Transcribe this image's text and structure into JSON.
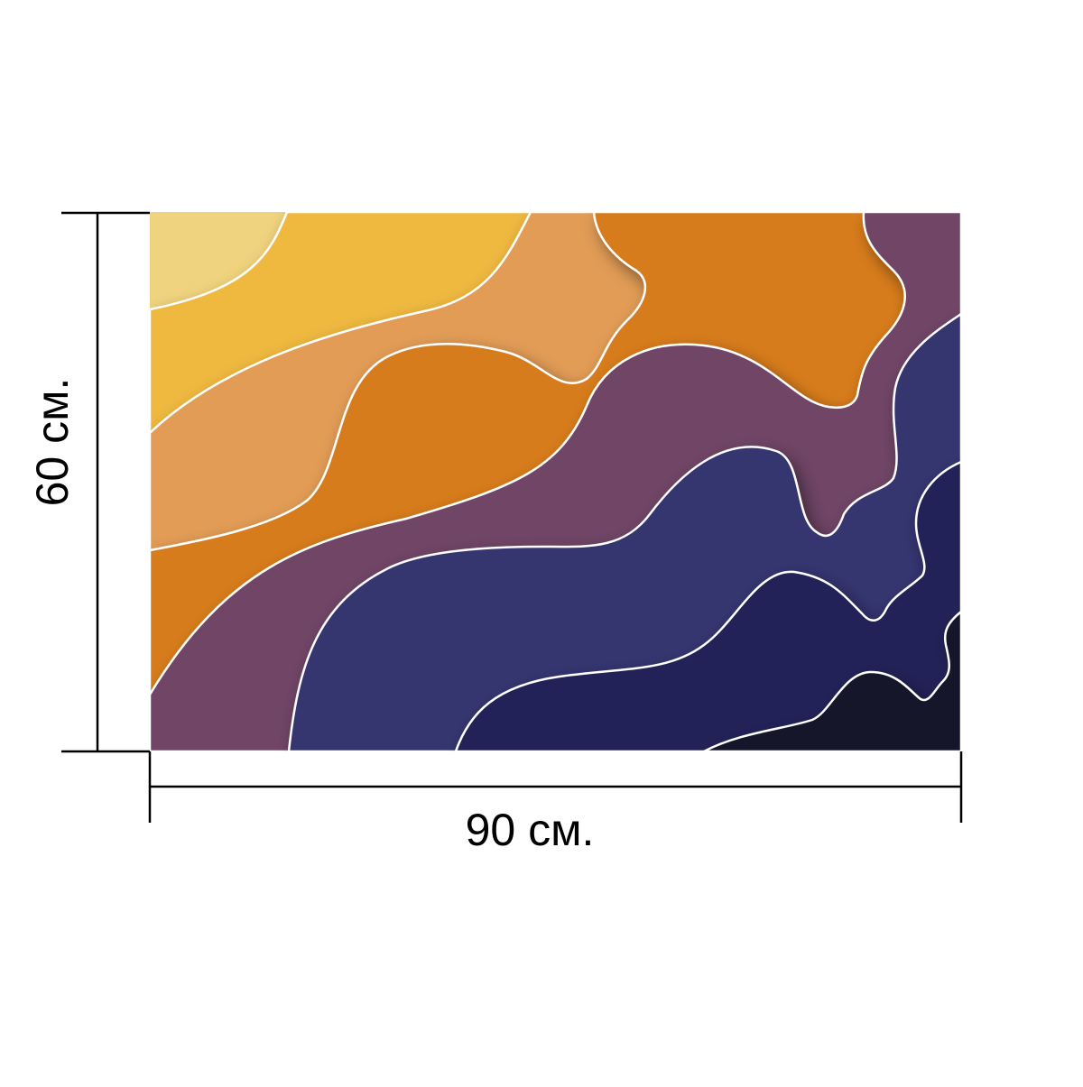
{
  "dimensions": {
    "width_label": "90 см.",
    "height_label": "60 см."
  },
  "artwork": {
    "palette": [
      "#f0d37e",
      "#efb93f",
      "#e29c57",
      "#d77b1a",
      "#6f4566",
      "#35366f",
      "#222459",
      "#14142a"
    ],
    "outline_color": "#ffffff"
  }
}
